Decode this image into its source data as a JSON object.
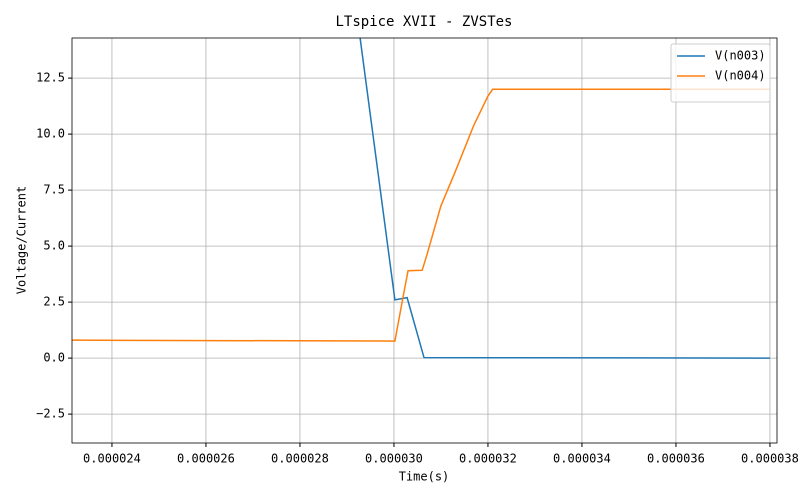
{
  "chart_data": {
    "type": "line",
    "title": "LTspice XVII - ZVSTes",
    "xlabel": "Time(s)",
    "ylabel": "Voltage/Current",
    "xlim": [
      2.315e-05,
      3.815e-05
    ],
    "ylim": [
      -3.79,
      14.29
    ],
    "xticks": [
      {
        "value": 2.4e-05,
        "label": "0.000024"
      },
      {
        "value": 2.6e-05,
        "label": "0.000026"
      },
      {
        "value": 2.8e-05,
        "label": "0.000028"
      },
      {
        "value": 3e-05,
        "label": "0.000030"
      },
      {
        "value": 3.2e-05,
        "label": "0.000032"
      },
      {
        "value": 3.4e-05,
        "label": "0.000034"
      },
      {
        "value": 3.6e-05,
        "label": "0.000036"
      },
      {
        "value": 3.8e-05,
        "label": "0.000038"
      }
    ],
    "yticks": [
      {
        "value": -2.5,
        "label": "−2.5"
      },
      {
        "value": 0,
        "label": "0.0"
      },
      2.5,
      {
        "value": 5,
        "label": "5.0"
      },
      7.5,
      {
        "value": 10,
        "label": "10.0"
      },
      12.5
    ],
    "grid": true,
    "legend": "upper right",
    "series": [
      {
        "name": "V(n003)",
        "color": "#1f77b4",
        "x": [
          2.928e-05,
          3.002e-05,
          3.028e-05,
          3.064e-05,
          3.8e-05
        ],
        "values": [
          14.29,
          2.6,
          2.7,
          0.02,
          0
        ]
      },
      {
        "name": "V(n004)",
        "color": "#ff7f0e",
        "x": [
          2.315e-05,
          3.002e-05,
          3.02e-05,
          3.03e-05,
          3.06e-05,
          3.07e-05,
          3.1e-05,
          3.13e-05,
          3.17e-05,
          3.2e-05,
          3.21e-05,
          3.8e-05
        ],
        "values": [
          0.8,
          0.76,
          2.8,
          3.9,
          3.92,
          4.6,
          6.8,
          8.3,
          10.4,
          11.7,
          12.0,
          12.0
        ]
      }
    ]
  }
}
